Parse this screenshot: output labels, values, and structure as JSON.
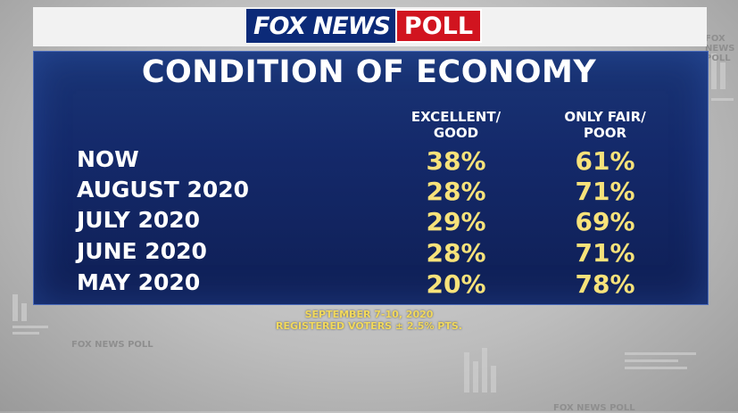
{
  "brand": {
    "logo_text": "FOX NEWS",
    "poll_text": "POLL",
    "watermark": "FOX NEWS POLL",
    "colors": {
      "navy": "#0c2a78",
      "red": "#d1141f",
      "panel": "#14296a",
      "value": "#f7e27a"
    }
  },
  "chart_data": {
    "type": "table",
    "title": "CONDITION OF ECONOMY",
    "columns": [
      "EXCELLENT/ GOOD",
      "ONLY FAIR/ POOR"
    ],
    "column_lines": [
      [
        "EXCELLENT/",
        "GOOD"
      ],
      [
        "ONLY FAIR/",
        "POOR"
      ]
    ],
    "rows": [
      {
        "label": "NOW",
        "values": [
          "38%",
          "61%"
        ]
      },
      {
        "label": "AUGUST 2020",
        "values": [
          "28%",
          "71%"
        ]
      },
      {
        "label": "JULY 2020",
        "values": [
          "29%",
          "69%"
        ]
      },
      {
        "label": "JUNE 2020",
        "values": [
          "28%",
          "71%"
        ]
      },
      {
        "label": "MAY 2020",
        "values": [
          "20%",
          "78%"
        ]
      }
    ],
    "series": [
      {
        "name": "EXCELLENT/ GOOD",
        "values": [
          38,
          28,
          29,
          28,
          20
        ]
      },
      {
        "name": "ONLY FAIR/ POOR",
        "values": [
          61,
          71,
          69,
          71,
          78
        ]
      }
    ],
    "categories": [
      "NOW",
      "AUGUST 2020",
      "JULY 2020",
      "JUNE 2020",
      "MAY 2020"
    ],
    "unit": "%"
  },
  "footnote": {
    "line1": "SEPTEMBER 7-10, 2020",
    "line2": "REGISTERED VOTERS ± 2.5% PTS."
  }
}
